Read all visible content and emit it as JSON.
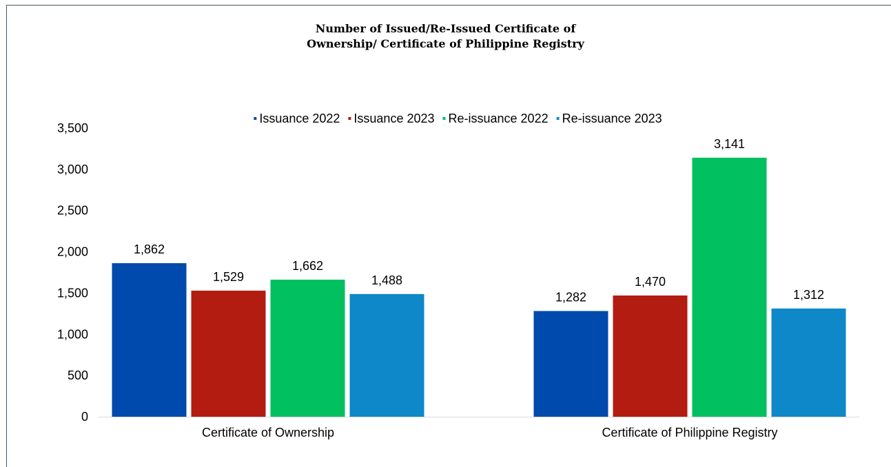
{
  "chart_data": {
    "type": "bar",
    "title_lines": [
      "Number of Issued/Re-Issued Certificate of",
      "Ownership/ Certificate of Philippine Registry"
    ],
    "categories": [
      "Certificate of Ownership",
      "Certificate of Philippine Registry"
    ],
    "series": [
      {
        "name": "Issuance 2022",
        "color": "#004aad",
        "values": [
          1862,
          1282
        ],
        "labels": [
          "1,862",
          "1,282"
        ]
      },
      {
        "name": "Issuance 2023",
        "color": "#b31c10",
        "values": [
          1529,
          1470
        ],
        "labels": [
          "1,529",
          "1,470"
        ]
      },
      {
        "name": "Re-issuance 2022",
        "color": "#00c060",
        "values": [
          1662,
          3141
        ],
        "labels": [
          "1,662",
          "3,141"
        ]
      },
      {
        "name": "Re-issuance 2023",
        "color": "#0e88c8",
        "values": [
          1488,
          1312
        ],
        "labels": [
          "1,488",
          "1,312"
        ]
      }
    ],
    "ylim": [
      0,
      3500
    ],
    "yticks": [
      0,
      500,
      1000,
      1500,
      2000,
      2500,
      3000,
      3500
    ],
    "ytick_labels": [
      "0",
      "500",
      "1,000",
      "1,500",
      "2,000",
      "2,500",
      "3,000",
      "3,500"
    ],
    "legend_position": "top",
    "grid": false
  }
}
